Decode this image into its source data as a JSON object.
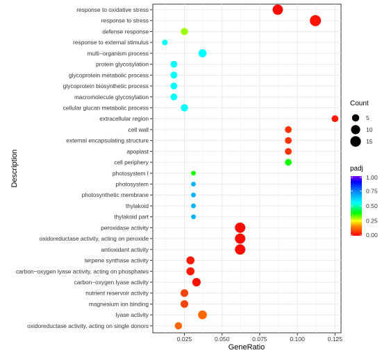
{
  "chart_data": {
    "type": "scatter",
    "xlabel": "GeneRatio",
    "ylabel": "Description",
    "xlim": [
      0.004,
      0.129
    ],
    "xticks": [
      0.025,
      0.05,
      0.075,
      0.1,
      0.125
    ],
    "xtick_labels": [
      "0.025",
      "0.050",
      "0.075",
      "0.100",
      "0.125"
    ],
    "grid": true,
    "legend_position": "right",
    "size_legend": {
      "title": "Count",
      "values": [
        5,
        10,
        15
      ]
    },
    "color_legend": {
      "title": "padj",
      "range": [
        0,
        1
      ],
      "ticks": [
        1.0,
        0.75,
        0.5,
        0.25,
        0.0
      ],
      "tick_labels": [
        "1.00",
        "0.75",
        "0.50",
        "0.25",
        "0.00"
      ],
      "colors": [
        "#ff0000",
        "#ff8000",
        "#ffff00",
        "#00ff00",
        "#00ffff",
        "#0080ff",
        "#0000ff",
        "#8000ff"
      ]
    },
    "categories": [
      "response to oxidative stress",
      "response to stress",
      "defense response",
      "response to external stimulus",
      "multi−organism process",
      "protein glycosylation",
      "glycoprotein metabolic process",
      "glycoprotein biosynthetic process",
      "macromolecule glycosylation",
      "cellular glucan metabolic process",
      "extracellular region",
      "cell wall",
      "external encapsulating structure",
      "apoplast",
      "cell periphery",
      "photosystem I",
      "photosystem",
      "photosynthetic membrane",
      "thylakoid",
      "thylakoid part",
      "peroxidase activity",
      "oxidoreductase activity, acting on peroxide",
      "antioxidant activity",
      "terpene synthase activity",
      "carbon−oxygen lyase activity, acting on phosphates",
      "carbon−oxygen lyase activity",
      "nutrient reservoir activity",
      "magnesium ion binding",
      "lyase activity",
      "oxidoreductase activity, acting on single donors"
    ],
    "points": [
      {
        "description": "response to oxidative stress",
        "gene_ratio": 0.087,
        "count": 14,
        "padj": 0.01
      },
      {
        "description": "response to stress",
        "gene_ratio": 0.112,
        "count": 17,
        "padj": 0.02
      },
      {
        "description": "defense response",
        "gene_ratio": 0.025,
        "count": 5,
        "padj": 0.3
      },
      {
        "description": "response to external stimulus",
        "gene_ratio": 0.012,
        "count": 2,
        "padj": 0.55
      },
      {
        "description": "multi−organism process",
        "gene_ratio": 0.037,
        "count": 7,
        "padj": 0.55
      },
      {
        "description": "protein glycosylation",
        "gene_ratio": 0.018,
        "count": 4,
        "padj": 0.55
      },
      {
        "description": "glycoprotein metabolic process",
        "gene_ratio": 0.018,
        "count": 4,
        "padj": 0.55
      },
      {
        "description": "glycoprotein biosynthetic process",
        "gene_ratio": 0.018,
        "count": 4,
        "padj": 0.55
      },
      {
        "description": "macromolecule glycosylation",
        "gene_ratio": 0.018,
        "count": 4,
        "padj": 0.55
      },
      {
        "description": "cellular glucan metabolic process",
        "gene_ratio": 0.025,
        "count": 5,
        "padj": 0.55
      },
      {
        "description": "extracellular region",
        "gene_ratio": 0.125,
        "count": 4,
        "padj": 0.03
      },
      {
        "description": "cell wall",
        "gene_ratio": 0.094,
        "count": 4,
        "padj": 0.06
      },
      {
        "description": "external encapsulating structure",
        "gene_ratio": 0.094,
        "count": 4,
        "padj": 0.06
      },
      {
        "description": "apoplast",
        "gene_ratio": 0.094,
        "count": 4,
        "padj": 0.06
      },
      {
        "description": "cell periphery",
        "gene_ratio": 0.094,
        "count": 4,
        "padj": 0.37
      },
      {
        "description": "photosystem I",
        "gene_ratio": 0.031,
        "count": 1,
        "padj": 0.37
      },
      {
        "description": "photosystem",
        "gene_ratio": 0.031,
        "count": 1,
        "padj": 0.67
      },
      {
        "description": "photosynthetic membrane",
        "gene_ratio": 0.031,
        "count": 1,
        "padj": 0.67
      },
      {
        "description": "thylakoid",
        "gene_ratio": 0.031,
        "count": 1,
        "padj": 0.67
      },
      {
        "description": "thylakoid part",
        "gene_ratio": 0.031,
        "count": 1,
        "padj": 0.67
      },
      {
        "description": "peroxidase activity",
        "gene_ratio": 0.062,
        "count": 14,
        "padj": 0.01
      },
      {
        "description": "oxidoreductase activity, acting on peroxide",
        "gene_ratio": 0.062,
        "count": 14,
        "padj": 0.01
      },
      {
        "description": "antioxidant activity",
        "gene_ratio": 0.062,
        "count": 14,
        "padj": 0.01
      },
      {
        "description": "terpene synthase activity",
        "gene_ratio": 0.029,
        "count": 7,
        "padj": 0.03
      },
      {
        "description": "carbon−oxygen lyase activity, acting on phosphates",
        "gene_ratio": 0.029,
        "count": 7,
        "padj": 0.03
      },
      {
        "description": "carbon−oxygen lyase activity",
        "gene_ratio": 0.033,
        "count": 8,
        "padj": 0.02
      },
      {
        "description": "nutrient reservoir activity",
        "gene_ratio": 0.025,
        "count": 6,
        "padj": 0.08
      },
      {
        "description": "magnesium ion binding",
        "gene_ratio": 0.025,
        "count": 6,
        "padj": 0.08
      },
      {
        "description": "lyase activity",
        "gene_ratio": 0.037,
        "count": 9,
        "padj": 0.12
      },
      {
        "description": "oxidoreductase activity, acting on single donors",
        "gene_ratio": 0.021,
        "count": 5,
        "padj": 0.12
      }
    ]
  }
}
